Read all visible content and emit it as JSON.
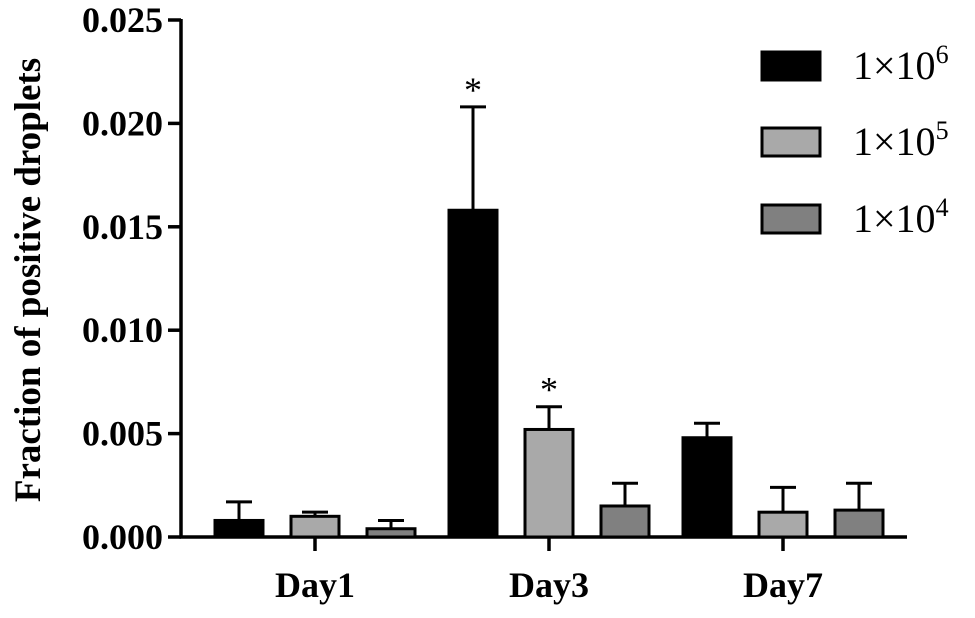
{
  "chart_data": {
    "type": "bar",
    "ylabel": "Fraction of positive droplets",
    "xlabel": "",
    "ylim": [
      0,
      0.025
    ],
    "yticks": [
      "0.000",
      "0.005",
      "0.010",
      "0.015",
      "0.020",
      "0.025"
    ],
    "categories": [
      "Day1",
      "Day3",
      "Day7"
    ],
    "grid": false,
    "legend_position": "top-right",
    "series": [
      {
        "name": "1×10^6",
        "legend_base": "1×10",
        "legend_exp": "6",
        "color": "#000000",
        "values": [
          0.0008,
          0.0158,
          0.0048
        ],
        "errors": [
          0.0009,
          0.005,
          0.0007
        ],
        "significance": [
          "",
          "*",
          ""
        ]
      },
      {
        "name": "1×10^5",
        "legend_base": "1×10",
        "legend_exp": "5",
        "color": "#a9a9a9",
        "values": [
          0.001,
          0.0052,
          0.0012
        ],
        "errors": [
          0.0002,
          0.0011,
          0.0012
        ],
        "significance": [
          "",
          "*",
          ""
        ]
      },
      {
        "name": "1×10^4",
        "legend_base": "1×10",
        "legend_exp": "4",
        "color": "#808080",
        "values": [
          0.0004,
          0.0015,
          0.0013
        ],
        "errors": [
          0.0004,
          0.0011,
          0.0013
        ],
        "significance": [
          "",
          "",
          ""
        ]
      }
    ]
  }
}
